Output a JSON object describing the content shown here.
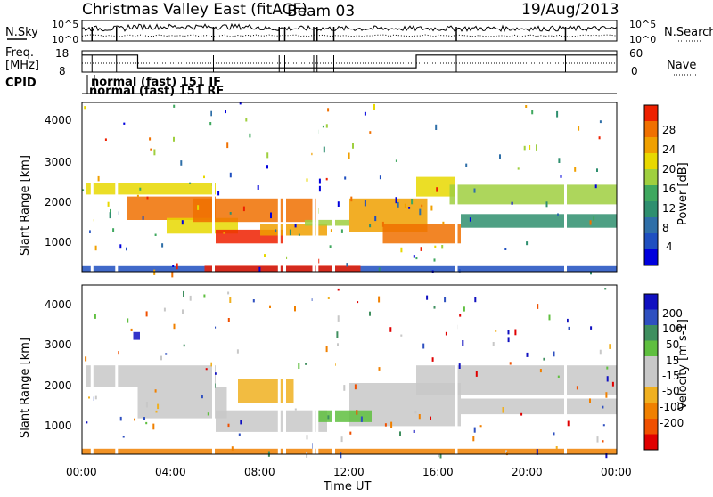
{
  "header": {
    "title": "Christmas Valley East (fitACF)",
    "beam": "Beam 03",
    "date": "19/Aug/2013"
  },
  "noise_panel": {
    "left_label": "N.Sky",
    "right_label": "N.Search",
    "left_ticks": [
      "10^5",
      "10^0"
    ],
    "right_ticks": [
      "10^5",
      "10^0"
    ]
  },
  "freq_panel": {
    "left_label_1": "Freq.",
    "left_label_2": "[MHz]",
    "right_label": "Nave",
    "left_ticks": [
      "18",
      "8"
    ],
    "right_ticks": [
      "60",
      "0"
    ]
  },
  "cpid": {
    "label": "CPID",
    "line1": "normal (fast) 151 IF",
    "line2": "normal (fast) 151 RF"
  },
  "x_axis": {
    "label": "Time UT",
    "ticks": [
      "00:00",
      "04:00",
      "08:00",
      "12:00",
      "16:00",
      "20:00",
      "00:00"
    ]
  },
  "power_panel": {
    "ylabel": "Slant Range [km]",
    "yticks": [
      "4000",
      "3000",
      "2000",
      "1000"
    ],
    "colorbar_label": "Power [dB]",
    "colorbar_ticks": [
      "28",
      "24",
      "20",
      "16",
      "12",
      "8",
      "4"
    ],
    "colors": [
      "#0000dd",
      "#1f4fc0",
      "#2f6fa8",
      "#2f8f6f",
      "#3fa85f",
      "#9fcf3f",
      "#e8d800",
      "#f0a000",
      "#f07000",
      "#ee2000"
    ]
  },
  "velocity_panel": {
    "ylabel": "Slant Range [km]",
    "yticks": [
      "4000",
      "3000",
      "2000",
      "1000"
    ],
    "colorbar_label": "Velocity [m s-1]",
    "colorbar_ticks": [
      "200",
      "100",
      "50",
      "15",
      "-15",
      "-50",
      "-100",
      "-200"
    ],
    "colors": [
      "#1010c0",
      "#2f50c0",
      "#3f8f5f",
      "#5fbf3f",
      "#c8c8c8",
      "#c8c8c8",
      "#f0b020",
      "#f08000",
      "#f05000",
      "#e00000"
    ]
  },
  "chart_data": {
    "type": "heatmap",
    "x_unit": "hours UT",
    "x_range": [
      0,
      24
    ],
    "y_range_km": [
      180,
      4500
    ],
    "power_bands": [
      {
        "t0": 0.2,
        "t1": 6.0,
        "r0": 2150,
        "r1": 2450,
        "level": 6
      },
      {
        "t0": 2.0,
        "t1": 6.0,
        "r0": 1500,
        "r1": 2100,
        "level": 8
      },
      {
        "t0": 3.8,
        "t1": 7.0,
        "r0": 1150,
        "r1": 1550,
        "level": 6
      },
      {
        "t0": 5.0,
        "t1": 10.5,
        "r0": 1450,
        "r1": 2050,
        "level": 8
      },
      {
        "t0": 6.0,
        "t1": 9.0,
        "r0": 900,
        "r1": 1250,
        "level": 9
      },
      {
        "t0": 8.0,
        "t1": 11.0,
        "r0": 1100,
        "r1": 1400,
        "level": 7
      },
      {
        "t0": 10.0,
        "t1": 12.0,
        "r0": 1350,
        "r1": 1500,
        "level": 5
      },
      {
        "t0": 12.0,
        "t1": 15.5,
        "r0": 1200,
        "r1": 2050,
        "level": 7
      },
      {
        "t0": 13.5,
        "t1": 17.0,
        "r0": 900,
        "r1": 1400,
        "level": 8
      },
      {
        "t0": 15.0,
        "t1": 16.8,
        "r0": 2100,
        "r1": 2600,
        "level": 6
      },
      {
        "t0": 16.5,
        "t1": 24.0,
        "r0": 1900,
        "r1": 2400,
        "level": 5
      },
      {
        "t0": 17.0,
        "t1": 24.0,
        "r0": 1300,
        "r1": 1650,
        "level": 3
      },
      {
        "t0": 0.0,
        "t1": 24.0,
        "r0": 180,
        "r1": 320,
        "level": 1
      },
      {
        "t0": 5.5,
        "t1": 12.5,
        "r0": 180,
        "r1": 330,
        "level": 9
      }
    ],
    "velocity_bands": [
      {
        "t0": 0.2,
        "t1": 6.0,
        "r0": 1900,
        "r1": 2450,
        "level": 4
      },
      {
        "t0": 2.5,
        "t1": 6.5,
        "r0": 1100,
        "r1": 1900,
        "level": 4
      },
      {
        "t0": 6.0,
        "t1": 11.0,
        "r0": 750,
        "r1": 1300,
        "level": 5
      },
      {
        "t0": 7.0,
        "t1": 9.5,
        "r0": 1500,
        "r1": 2100,
        "level": 6
      },
      {
        "t0": 12.0,
        "t1": 17.0,
        "r0": 900,
        "r1": 2000,
        "level": 4
      },
      {
        "t0": 15.0,
        "t1": 24.0,
        "r0": 1700,
        "r1": 2450,
        "level": 5
      },
      {
        "t0": 17.0,
        "t1": 24.0,
        "r0": 1200,
        "r1": 1600,
        "level": 4
      },
      {
        "t0": 10.5,
        "t1": 13.0,
        "r0": 1000,
        "r1": 1300,
        "level": 3
      },
      {
        "t0": 0.0,
        "t1": 24.0,
        "r0": 180,
        "r1": 320,
        "level": 7
      },
      {
        "t0": 2.3,
        "t1": 2.6,
        "r0": 3100,
        "r1": 3300,
        "level": 0
      }
    ],
    "data_gaps_hours": [
      0.45,
      1.55,
      5.9,
      8.85,
      9.1,
      10.4,
      10.55,
      11.3,
      16.8,
      21.7
    ],
    "freq_steps": [
      {
        "t0": 0.0,
        "t1": 1.5,
        "mhz": 16
      },
      {
        "t0": 1.5,
        "t1": 2.5,
        "mhz": 16
      },
      {
        "t0": 2.5,
        "t1": 15.0,
        "mhz": 10
      },
      {
        "t0": 15.0,
        "t1": 24.0,
        "mhz": 16
      }
    ]
  }
}
